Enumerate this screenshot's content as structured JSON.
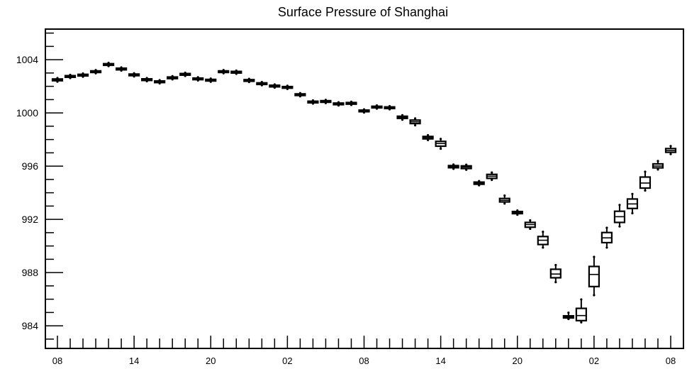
{
  "chart_data": {
    "type": "box",
    "title": "Surface Pressure of Shanghai",
    "xlabel": "",
    "ylabel": "",
    "x_tick_labels": [
      "08",
      "14",
      "20",
      "02",
      "08",
      "14",
      "20",
      "02",
      "08"
    ],
    "y_tick_labels": [
      "984",
      "988",
      "992",
      "996",
      "1000",
      "1004"
    ],
    "ylim": [
      982.3,
      1006.3
    ],
    "x_range_hours": [
      0,
      48
    ],
    "grid": false,
    "legend": "none",
    "series": [
      {
        "stats": [
          {
            "x": 0,
            "min": 1002.35,
            "q1": 1002.42,
            "median": 1002.48,
            "q3": 1002.55,
            "max": 1002.62
          },
          {
            "x": 1,
            "min": 1002.62,
            "q1": 1002.68,
            "median": 1002.74,
            "q3": 1002.8,
            "max": 1002.86
          },
          {
            "x": 2,
            "min": 1002.72,
            "q1": 1002.78,
            "median": 1002.84,
            "q3": 1002.9,
            "max": 1002.96
          },
          {
            "x": 3,
            "min": 1002.98,
            "q1": 1003.04,
            "median": 1003.1,
            "q3": 1003.16,
            "max": 1003.22
          },
          {
            "x": 4,
            "min": 1003.52,
            "q1": 1003.58,
            "median": 1003.64,
            "q3": 1003.7,
            "max": 1003.76
          },
          {
            "x": 5,
            "min": 1003.18,
            "q1": 1003.24,
            "median": 1003.3,
            "q3": 1003.36,
            "max": 1003.42
          },
          {
            "x": 6,
            "min": 1002.74,
            "q1": 1002.8,
            "median": 1002.86,
            "q3": 1002.92,
            "max": 1002.98
          },
          {
            "x": 7,
            "min": 1002.38,
            "q1": 1002.44,
            "median": 1002.5,
            "q3": 1002.56,
            "max": 1002.62
          },
          {
            "x": 8,
            "min": 1002.22,
            "q1": 1002.28,
            "median": 1002.34,
            "q3": 1002.4,
            "max": 1002.46
          },
          {
            "x": 9,
            "min": 1002.52,
            "q1": 1002.58,
            "median": 1002.64,
            "q3": 1002.7,
            "max": 1002.76
          },
          {
            "x": 10,
            "min": 1002.78,
            "q1": 1002.84,
            "median": 1002.9,
            "q3": 1002.96,
            "max": 1003.02
          },
          {
            "x": 11,
            "min": 1002.44,
            "q1": 1002.5,
            "median": 1002.56,
            "q3": 1002.62,
            "max": 1002.68
          },
          {
            "x": 12,
            "min": 1002.34,
            "q1": 1002.4,
            "median": 1002.46,
            "q3": 1002.52,
            "max": 1002.58
          },
          {
            "x": 13,
            "min": 1002.98,
            "q1": 1003.04,
            "median": 1003.1,
            "q3": 1003.16,
            "max": 1003.22
          },
          {
            "x": 14,
            "min": 1002.94,
            "q1": 1003.0,
            "median": 1003.06,
            "q3": 1003.12,
            "max": 1003.18
          },
          {
            "x": 15,
            "min": 1002.32,
            "q1": 1002.38,
            "median": 1002.44,
            "q3": 1002.5,
            "max": 1002.56
          },
          {
            "x": 16,
            "min": 1002.08,
            "q1": 1002.14,
            "median": 1002.2,
            "q3": 1002.26,
            "max": 1002.32
          },
          {
            "x": 17,
            "min": 1001.9,
            "q1": 1001.96,
            "median": 1002.02,
            "q3": 1002.08,
            "max": 1002.14
          },
          {
            "x": 18,
            "min": 1001.8,
            "q1": 1001.86,
            "median": 1001.92,
            "q3": 1001.98,
            "max": 1002.04
          },
          {
            "x": 19,
            "min": 1001.25,
            "q1": 1001.31,
            "median": 1001.37,
            "q3": 1001.43,
            "max": 1001.49
          },
          {
            "x": 20,
            "min": 1000.7,
            "q1": 1000.76,
            "median": 1000.82,
            "q3": 1000.88,
            "max": 1000.94
          },
          {
            "x": 21,
            "min": 1000.74,
            "q1": 1000.8,
            "median": 1000.86,
            "q3": 1000.92,
            "max": 1000.98
          },
          {
            "x": 22,
            "min": 1000.56,
            "q1": 1000.62,
            "median": 1000.68,
            "q3": 1000.74,
            "max": 1000.8
          },
          {
            "x": 23,
            "min": 1000.6,
            "q1": 1000.66,
            "median": 1000.72,
            "q3": 1000.78,
            "max": 1000.84
          },
          {
            "x": 24,
            "min": 1000.03,
            "q1": 1000.09,
            "median": 1000.15,
            "q3": 1000.21,
            "max": 1000.27
          },
          {
            "x": 25,
            "min": 1000.32,
            "q1": 1000.38,
            "median": 1000.44,
            "q3": 1000.5,
            "max": 1000.56
          },
          {
            "x": 26,
            "min": 1000.27,
            "q1": 1000.33,
            "median": 1000.39,
            "q3": 1000.45,
            "max": 1000.51
          },
          {
            "x": 27,
            "min": 999.49,
            "q1": 999.59,
            "median": 999.67,
            "q3": 999.75,
            "max": 999.83
          },
          {
            "x": 28,
            "min": 999.07,
            "q1": 999.2,
            "median": 999.33,
            "q3": 999.46,
            "max": 999.59
          },
          {
            "x": 29,
            "min": 997.96,
            "q1": 998.05,
            "median": 998.15,
            "q3": 998.23,
            "max": 998.33
          },
          {
            "x": 30,
            "min": 997.31,
            "q1": 997.5,
            "median": 997.7,
            "q3": 997.86,
            "max": 998.05
          },
          {
            "x": 31,
            "min": 995.8,
            "q1": 995.88,
            "median": 995.96,
            "q3": 996.04,
            "max": 996.12
          },
          {
            "x": 32,
            "min": 995.73,
            "q1": 995.82,
            "median": 995.93,
            "q3": 996.02,
            "max": 996.11
          },
          {
            "x": 33,
            "min": 994.56,
            "q1": 994.64,
            "median": 994.72,
            "q3": 994.8,
            "max": 994.88
          },
          {
            "x": 34,
            "min": 994.96,
            "q1": 995.08,
            "median": 995.24,
            "q3": 995.38,
            "max": 995.52
          },
          {
            "x": 35,
            "min": 993.19,
            "q1": 993.31,
            "median": 993.43,
            "q3": 993.57,
            "max": 993.79
          },
          {
            "x": 36,
            "min": 992.35,
            "q1": 992.43,
            "median": 992.51,
            "q3": 992.59,
            "max": 992.67
          },
          {
            "x": 37,
            "min": 991.29,
            "q1": 991.41,
            "median": 991.61,
            "q3": 991.77,
            "max": 991.93
          },
          {
            "x": 38,
            "min": 989.88,
            "q1": 990.11,
            "median": 990.43,
            "q3": 990.71,
            "max": 991.07
          },
          {
            "x": 39,
            "min": 987.28,
            "q1": 987.61,
            "median": 987.89,
            "q3": 988.25,
            "max": 988.57
          },
          {
            "x": 40,
            "min": 984.51,
            "q1": 984.59,
            "median": 984.67,
            "q3": 984.75,
            "max": 984.99
          },
          {
            "x": 41,
            "min": 984.26,
            "q1": 984.39,
            "median": 984.77,
            "q3": 985.31,
            "max": 985.98
          },
          {
            "x": 42,
            "min": 986.3,
            "q1": 986.95,
            "median": 987.86,
            "q3": 988.46,
            "max": 989.18
          },
          {
            "x": 43,
            "min": 989.88,
            "q1": 990.25,
            "median": 990.61,
            "q3": 991.01,
            "max": 991.37
          },
          {
            "x": 44,
            "min": 991.47,
            "q1": 991.77,
            "median": 992.2,
            "q3": 992.61,
            "max": 993.08
          },
          {
            "x": 45,
            "min": 992.46,
            "q1": 992.82,
            "median": 993.16,
            "q3": 993.53,
            "max": 993.91
          },
          {
            "x": 46,
            "min": 994.17,
            "q1": 994.35,
            "median": 994.73,
            "q3": 995.18,
            "max": 995.58
          },
          {
            "x": 47,
            "min": 995.75,
            "q1": 995.87,
            "median": 996.01,
            "q3": 996.17,
            "max": 996.39
          },
          {
            "x": 48,
            "min": 996.91,
            "q1": 997.04,
            "median": 997.17,
            "q3": 997.32,
            "max": 997.51
          }
        ]
      }
    ]
  }
}
